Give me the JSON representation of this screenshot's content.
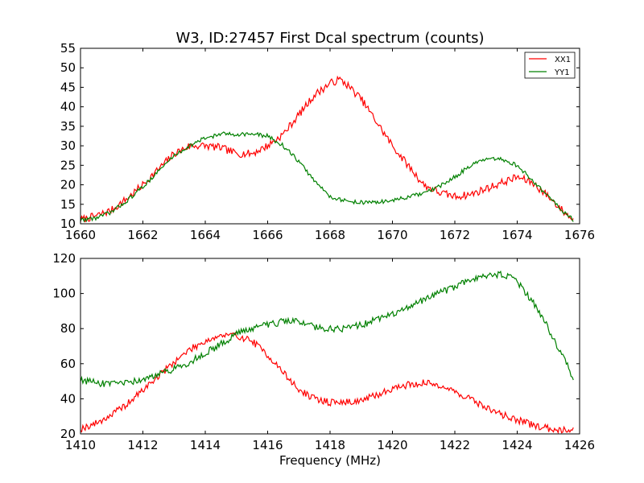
{
  "chart_data": [
    {
      "type": "line",
      "title": "W3, ID:27457 First Dcal spectrum (counts)",
      "xlabel": "",
      "ylabel": "",
      "xlim": [
        1660,
        1676
      ],
      "ylim": [
        10,
        55
      ],
      "xticks": [
        "1660",
        "1662",
        "1664",
        "1666",
        "1668",
        "1670",
        "1672",
        "1674",
        "1676"
      ],
      "yticks": [
        "10",
        "15",
        "20",
        "25",
        "30",
        "35",
        "40",
        "45",
        "50",
        "55"
      ],
      "grid": false,
      "legend": "top-right",
      "series": [
        {
          "name": "XX1",
          "color": "#ff0000",
          "x": [
            1660.0,
            1660.5,
            1661.0,
            1661.5,
            1662.0,
            1662.5,
            1663.0,
            1663.5,
            1664.0,
            1664.5,
            1665.0,
            1665.5,
            1666.0,
            1666.5,
            1667.0,
            1667.5,
            1668.0,
            1668.3,
            1668.5,
            1669.0,
            1669.5,
            1670.0,
            1670.5,
            1671.0,
            1671.5,
            1672.0,
            1672.5,
            1673.0,
            1673.5,
            1674.0,
            1674.5,
            1675.0,
            1675.5,
            1675.8
          ],
          "y": [
            11,
            12,
            13.5,
            16.5,
            20,
            24,
            28,
            30,
            30,
            29.5,
            28,
            28,
            30,
            33,
            38,
            43,
            46,
            47,
            46,
            42,
            36,
            30,
            25,
            20,
            18,
            17,
            17.5,
            19,
            20.5,
            22,
            20.5,
            17,
            13,
            11
          ]
        },
        {
          "name": "YY1",
          "color": "#008000",
          "x": [
            1660.0,
            1660.5,
            1661.0,
            1661.5,
            1662.0,
            1662.5,
            1663.0,
            1663.5,
            1664.0,
            1664.5,
            1665.0,
            1665.5,
            1666.0,
            1666.5,
            1667.0,
            1667.5,
            1668.0,
            1668.5,
            1669.0,
            1669.5,
            1670.0,
            1670.5,
            1671.0,
            1671.5,
            1672.0,
            1672.5,
            1673.0,
            1673.5,
            1674.0,
            1674.5,
            1675.0,
            1675.5,
            1675.8
          ],
          "y": [
            11,
            11.5,
            13,
            16,
            19.5,
            23.5,
            27.5,
            30,
            32,
            33,
            33,
            33,
            32.5,
            30,
            26,
            21,
            17,
            15.8,
            15.5,
            15.5,
            16,
            16.8,
            17.8,
            19.5,
            22,
            25,
            26.5,
            26.5,
            25,
            21,
            17,
            13,
            11
          ]
        }
      ]
    },
    {
      "type": "line",
      "title": "",
      "xlabel": "Frequency (MHz)",
      "ylabel": "",
      "xlim": [
        1410,
        1426
      ],
      "ylim": [
        20,
        120
      ],
      "xticks": [
        "1410",
        "1412",
        "1414",
        "1416",
        "1418",
        "1420",
        "1422",
        "1424",
        "1426"
      ],
      "yticks": [
        "20",
        "40",
        "60",
        "80",
        "100",
        "120"
      ],
      "grid": false,
      "series": [
        {
          "color": "#ff0000",
          "x": [
            1410.0,
            1410.5,
            1411.0,
            1411.5,
            1412.0,
            1412.5,
            1413.0,
            1413.5,
            1414.0,
            1414.5,
            1415.0,
            1415.5,
            1416.0,
            1416.5,
            1417.0,
            1417.5,
            1418.0,
            1418.5,
            1419.0,
            1419.5,
            1420.0,
            1420.5,
            1421.0,
            1421.5,
            1422.0,
            1422.5,
            1423.0,
            1423.5,
            1424.0,
            1424.5,
            1425.0,
            1425.5,
            1425.8
          ],
          "y": [
            23,
            26,
            31,
            37,
            45,
            53,
            61,
            68,
            73,
            76,
            76,
            73,
            65,
            55,
            45,
            40,
            38,
            38,
            39,
            42,
            46,
            48,
            49,
            48,
            44,
            40,
            35,
            31,
            28,
            25,
            23,
            22.5,
            22.5
          ]
        },
        {
          "color": "#008000",
          "x": [
            1410.0,
            1410.5,
            1411.0,
            1411.5,
            1412.0,
            1412.5,
            1413.0,
            1413.5,
            1414.0,
            1414.5,
            1415.0,
            1415.5,
            1416.0,
            1416.5,
            1417.0,
            1417.5,
            1418.0,
            1418.5,
            1419.0,
            1419.5,
            1420.0,
            1420.5,
            1421.0,
            1421.5,
            1422.0,
            1422.5,
            1423.0,
            1423.5,
            1424.0,
            1424.5,
            1425.0,
            1425.5,
            1425.8
          ],
          "y": [
            51,
            49,
            48,
            49,
            51,
            54,
            57,
            61,
            66,
            71,
            77,
            80,
            82,
            84,
            84,
            81,
            80,
            80,
            82,
            85,
            88,
            92,
            96,
            100,
            104,
            108,
            110,
            111,
            107,
            95,
            80,
            63,
            52
          ]
        }
      ]
    }
  ]
}
